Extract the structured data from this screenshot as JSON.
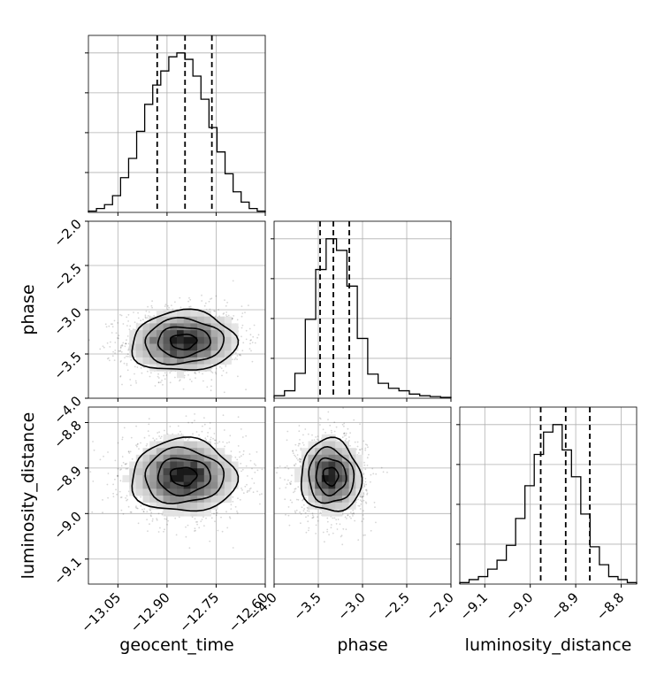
{
  "chart_data": {
    "type": "corner",
    "parameters": [
      "geocent_time",
      "phase",
      "luminosity_distance"
    ],
    "axis_labels": {
      "geocent_time": "geocent_time",
      "phase": "phase",
      "luminosity_distance": "luminosity_distance"
    },
    "ranges": {
      "geocent_time": [
        -13.14,
        -12.6
      ],
      "phase": [
        -4.0,
        -2.0
      ],
      "luminosity_distance": [
        -9.155,
        -8.766
      ]
    },
    "ticks": {
      "geocent_time": [
        {
          "value": -13.05,
          "label": "−13.05"
        },
        {
          "value": -12.9,
          "label": "−12.90"
        },
        {
          "value": -12.75,
          "label": "−12.75"
        },
        {
          "value": -12.6,
          "label": "−12.60"
        }
      ],
      "phase": [
        {
          "value": -4.0,
          "label": "−4.0"
        },
        {
          "value": -3.5,
          "label": "−3.5"
        },
        {
          "value": -3.0,
          "label": "−3.0"
        },
        {
          "value": -2.5,
          "label": "−2.5"
        },
        {
          "value": -2.0,
          "label": "−2.0"
        }
      ],
      "luminosity_distance": [
        {
          "value": -9.1,
          "label": "−9.1"
        },
        {
          "value": -9.0,
          "label": "−9.0"
        },
        {
          "value": -8.9,
          "label": "−8.9"
        },
        {
          "value": -8.8,
          "label": "−8.8"
        }
      ]
    },
    "grid": true,
    "quantiles": {
      "geocent_time": [
        -12.93,
        -12.845,
        -12.763
      ],
      "phase": [
        -3.48,
        -3.33,
        -3.15
      ],
      "luminosity_distance": [
        -8.977,
        -8.922,
        -8.869
      ]
    },
    "histograms": {
      "geocent_time": [
        0.01,
        0.03,
        0.06,
        0.13,
        0.27,
        0.42,
        0.63,
        0.84,
        0.99,
        1.1,
        1.21,
        1.24,
        1.19,
        1.06,
        0.88,
        0.66,
        0.47,
        0.3,
        0.16,
        0.08,
        0.03,
        0.01
      ],
      "phase": [
        0.03,
        0.09,
        0.3,
        0.95,
        1.55,
        1.92,
        1.78,
        1.35,
        0.72,
        0.29,
        0.18,
        0.12,
        0.09,
        0.05,
        0.03,
        0.02,
        0.01
      ],
      "luminosity_distance": [
        0.01,
        0.03,
        0.05,
        0.1,
        0.16,
        0.26,
        0.44,
        0.66,
        0.87,
        1.02,
        1.07,
        0.9,
        0.72,
        0.47,
        0.25,
        0.13,
        0.05,
        0.03,
        0.01
      ]
    },
    "panels_2d": [
      {
        "x": "geocent_time",
        "y": "phase",
        "mean": [
          -12.85,
          -3.36
        ],
        "sd": [
          0.08,
          0.17
        ],
        "corr": 0.05
      },
      {
        "x": "geocent_time",
        "y": "luminosity_distance",
        "mean": [
          -12.85,
          -8.918
        ],
        "sd": [
          0.08,
          0.04
        ],
        "corr": 0.0
      },
      {
        "x": "phase",
        "y": "luminosity_distance",
        "mean": [
          -3.36,
          -8.918
        ],
        "sd": [
          0.17,
          0.04
        ],
        "corr": -0.05
      }
    ]
  }
}
